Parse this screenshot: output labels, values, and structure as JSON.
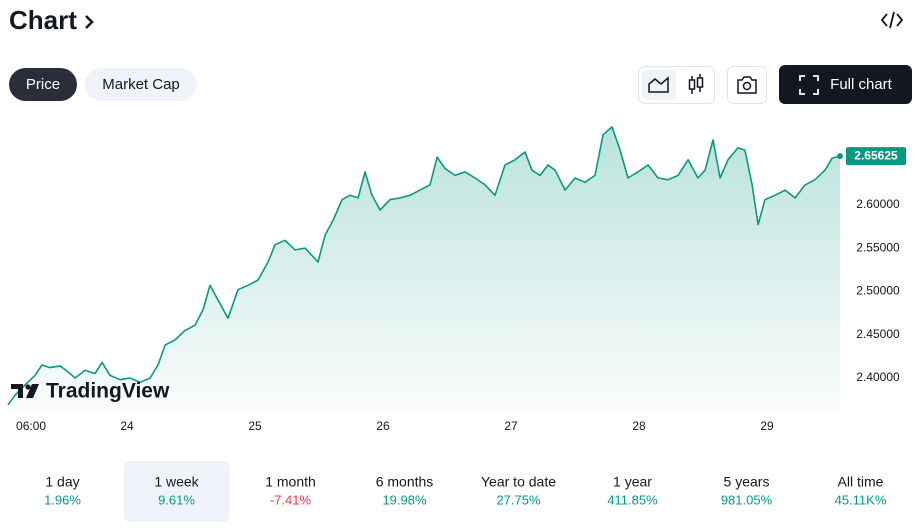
{
  "header": {
    "title": "Chart"
  },
  "tabs": [
    "Price",
    "Market Cap"
  ],
  "full_chart_button": "Full chart",
  "watermark": "TradingView",
  "chart_data": {
    "type": "line",
    "x": [
      23.07,
      23.125,
      23.203,
      23.281,
      23.336,
      23.398,
      23.477,
      23.539,
      23.594,
      23.672,
      23.75,
      23.805,
      23.867,
      23.945,
      24.023,
      24.102,
      24.18,
      24.242,
      24.297,
      24.375,
      24.453,
      24.531,
      24.594,
      24.648,
      24.711,
      24.789,
      24.867,
      24.945,
      25.023,
      25.102,
      25.156,
      25.234,
      25.313,
      25.391,
      25.492,
      25.547,
      25.609,
      25.68,
      25.742,
      25.805,
      25.859,
      25.914,
      25.977,
      26.055,
      26.133,
      26.211,
      26.289,
      26.367,
      26.422,
      26.484,
      26.563,
      26.641,
      26.719,
      26.797,
      26.875,
      26.953,
      27.031,
      27.109,
      27.164,
      27.227,
      27.289,
      27.344,
      27.422,
      27.5,
      27.578,
      27.656,
      27.719,
      27.789,
      27.852,
      27.914,
      27.992,
      28.07,
      28.148,
      28.227,
      28.305,
      28.383,
      28.461,
      28.516,
      28.578,
      28.633,
      28.695,
      28.773,
      28.828,
      28.883,
      28.93,
      28.984,
      29.063,
      29.141,
      29.219,
      29.297,
      29.375,
      29.453,
      29.508,
      29.57
    ],
    "series": [
      {
        "name": "Price",
        "color": "#089981",
        "values": [
          2.369,
          2.38,
          2.392,
          2.403,
          2.415,
          2.412,
          2.414,
          2.407,
          2.4,
          2.409,
          2.405,
          2.418,
          2.403,
          2.398,
          2.4,
          2.395,
          2.4,
          2.415,
          2.438,
          2.444,
          2.455,
          2.461,
          2.479,
          2.507,
          2.49,
          2.469,
          2.502,
          2.507,
          2.513,
          2.534,
          2.554,
          2.559,
          2.548,
          2.55,
          2.534,
          2.565,
          2.582,
          2.606,
          2.611,
          2.608,
          2.638,
          2.611,
          2.594,
          2.606,
          2.608,
          2.611,
          2.617,
          2.623,
          2.655,
          2.642,
          2.634,
          2.638,
          2.631,
          2.623,
          2.611,
          2.646,
          2.652,
          2.661,
          2.64,
          2.634,
          2.646,
          2.64,
          2.617,
          2.631,
          2.626,
          2.634,
          2.681,
          2.69,
          2.663,
          2.631,
          2.638,
          2.646,
          2.631,
          2.629,
          2.634,
          2.652,
          2.631,
          2.64,
          2.675,
          2.631,
          2.652,
          2.666,
          2.663,
          2.623,
          2.577,
          2.606,
          2.611,
          2.617,
          2.608,
          2.623,
          2.629,
          2.64,
          2.654,
          2.65625
        ]
      }
    ],
    "xlim": [
      23.07,
      29.57
    ],
    "xticks": [
      {
        "value": 23.25,
        "label": "06:00"
      },
      24,
      25,
      26,
      27,
      28,
      29
    ],
    "ylim": [
      2.363,
      2.698
    ],
    "yticks": [
      {
        "value": 2.4,
        "label": "2.40000"
      },
      {
        "value": 2.45,
        "label": "2.45000"
      },
      {
        "value": 2.5,
        "label": "2.50000"
      },
      {
        "value": 2.55,
        "label": "2.55000"
      },
      {
        "value": 2.6,
        "label": "2.60000"
      }
    ],
    "grid": false
  },
  "periods": [
    {
      "label": "1 day",
      "change": "1.96%"
    },
    {
      "label": "1 week",
      "change": "9.61%",
      "selected": true
    },
    {
      "label": "1 month",
      "change": "-7.41%"
    },
    {
      "label": "6 months",
      "change": "19.98%"
    },
    {
      "label": "Year to date",
      "change": "27.75%"
    },
    {
      "label": "1 year",
      "change": "411.85%"
    },
    {
      "label": "5 years",
      "change": "981.05%"
    },
    {
      "label": "All time",
      "change": "45.11K%"
    }
  ]
}
